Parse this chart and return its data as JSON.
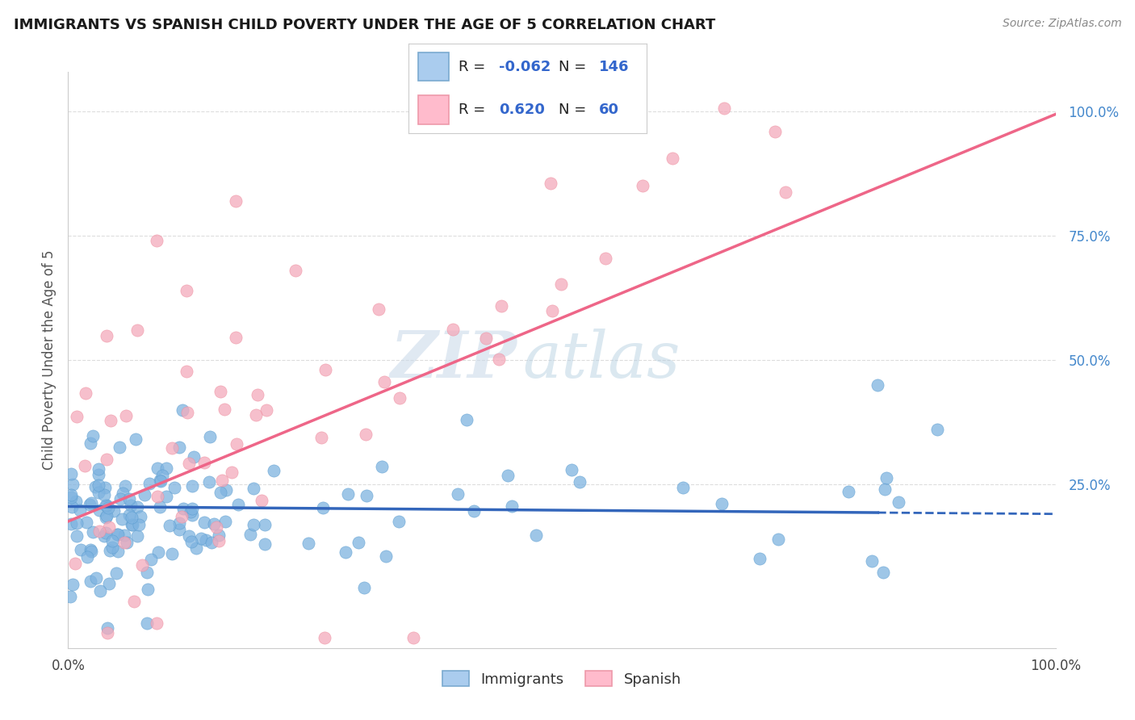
{
  "title": "IMMIGRANTS VS SPANISH CHILD POVERTY UNDER THE AGE OF 5 CORRELATION CHART",
  "source": "Source: ZipAtlas.com",
  "ylabel": "Child Poverty Under the Age of 5",
  "watermark_zip": "ZIP",
  "watermark_atlas": "atlas",
  "series": [
    {
      "name": "Immigrants",
      "color": "#7EB3E0",
      "edge_color": "#5599CC",
      "R": -0.062,
      "N": 146,
      "trend_color": "#3366BB",
      "trend_style": "solid"
    },
    {
      "name": "Spanish",
      "color": "#F4AABB",
      "edge_color": "#EE8899",
      "R": 0.62,
      "N": 60,
      "trend_color": "#EE6688",
      "trend_style": "solid"
    }
  ],
  "xlim": [
    0.0,
    1.0
  ],
  "ylim": [
    -0.08,
    1.08
  ],
  "ytick_vals": [
    0.25,
    0.5,
    0.75,
    1.0
  ],
  "ytick_labels": [
    "25.0%",
    "50.0%",
    "75.0%",
    "100.0%"
  ],
  "xtick_vals": [
    0.0,
    1.0
  ],
  "xtick_labels": [
    "0.0%",
    "100.0%"
  ],
  "background_color": "#FFFFFF",
  "grid_color": "#DDDDDD",
  "tick_color": "#4488CC",
  "legend_border_color": "#CCCCCC",
  "legend_R_label_color": "#222222",
  "legend_val_color": "#3366CC"
}
